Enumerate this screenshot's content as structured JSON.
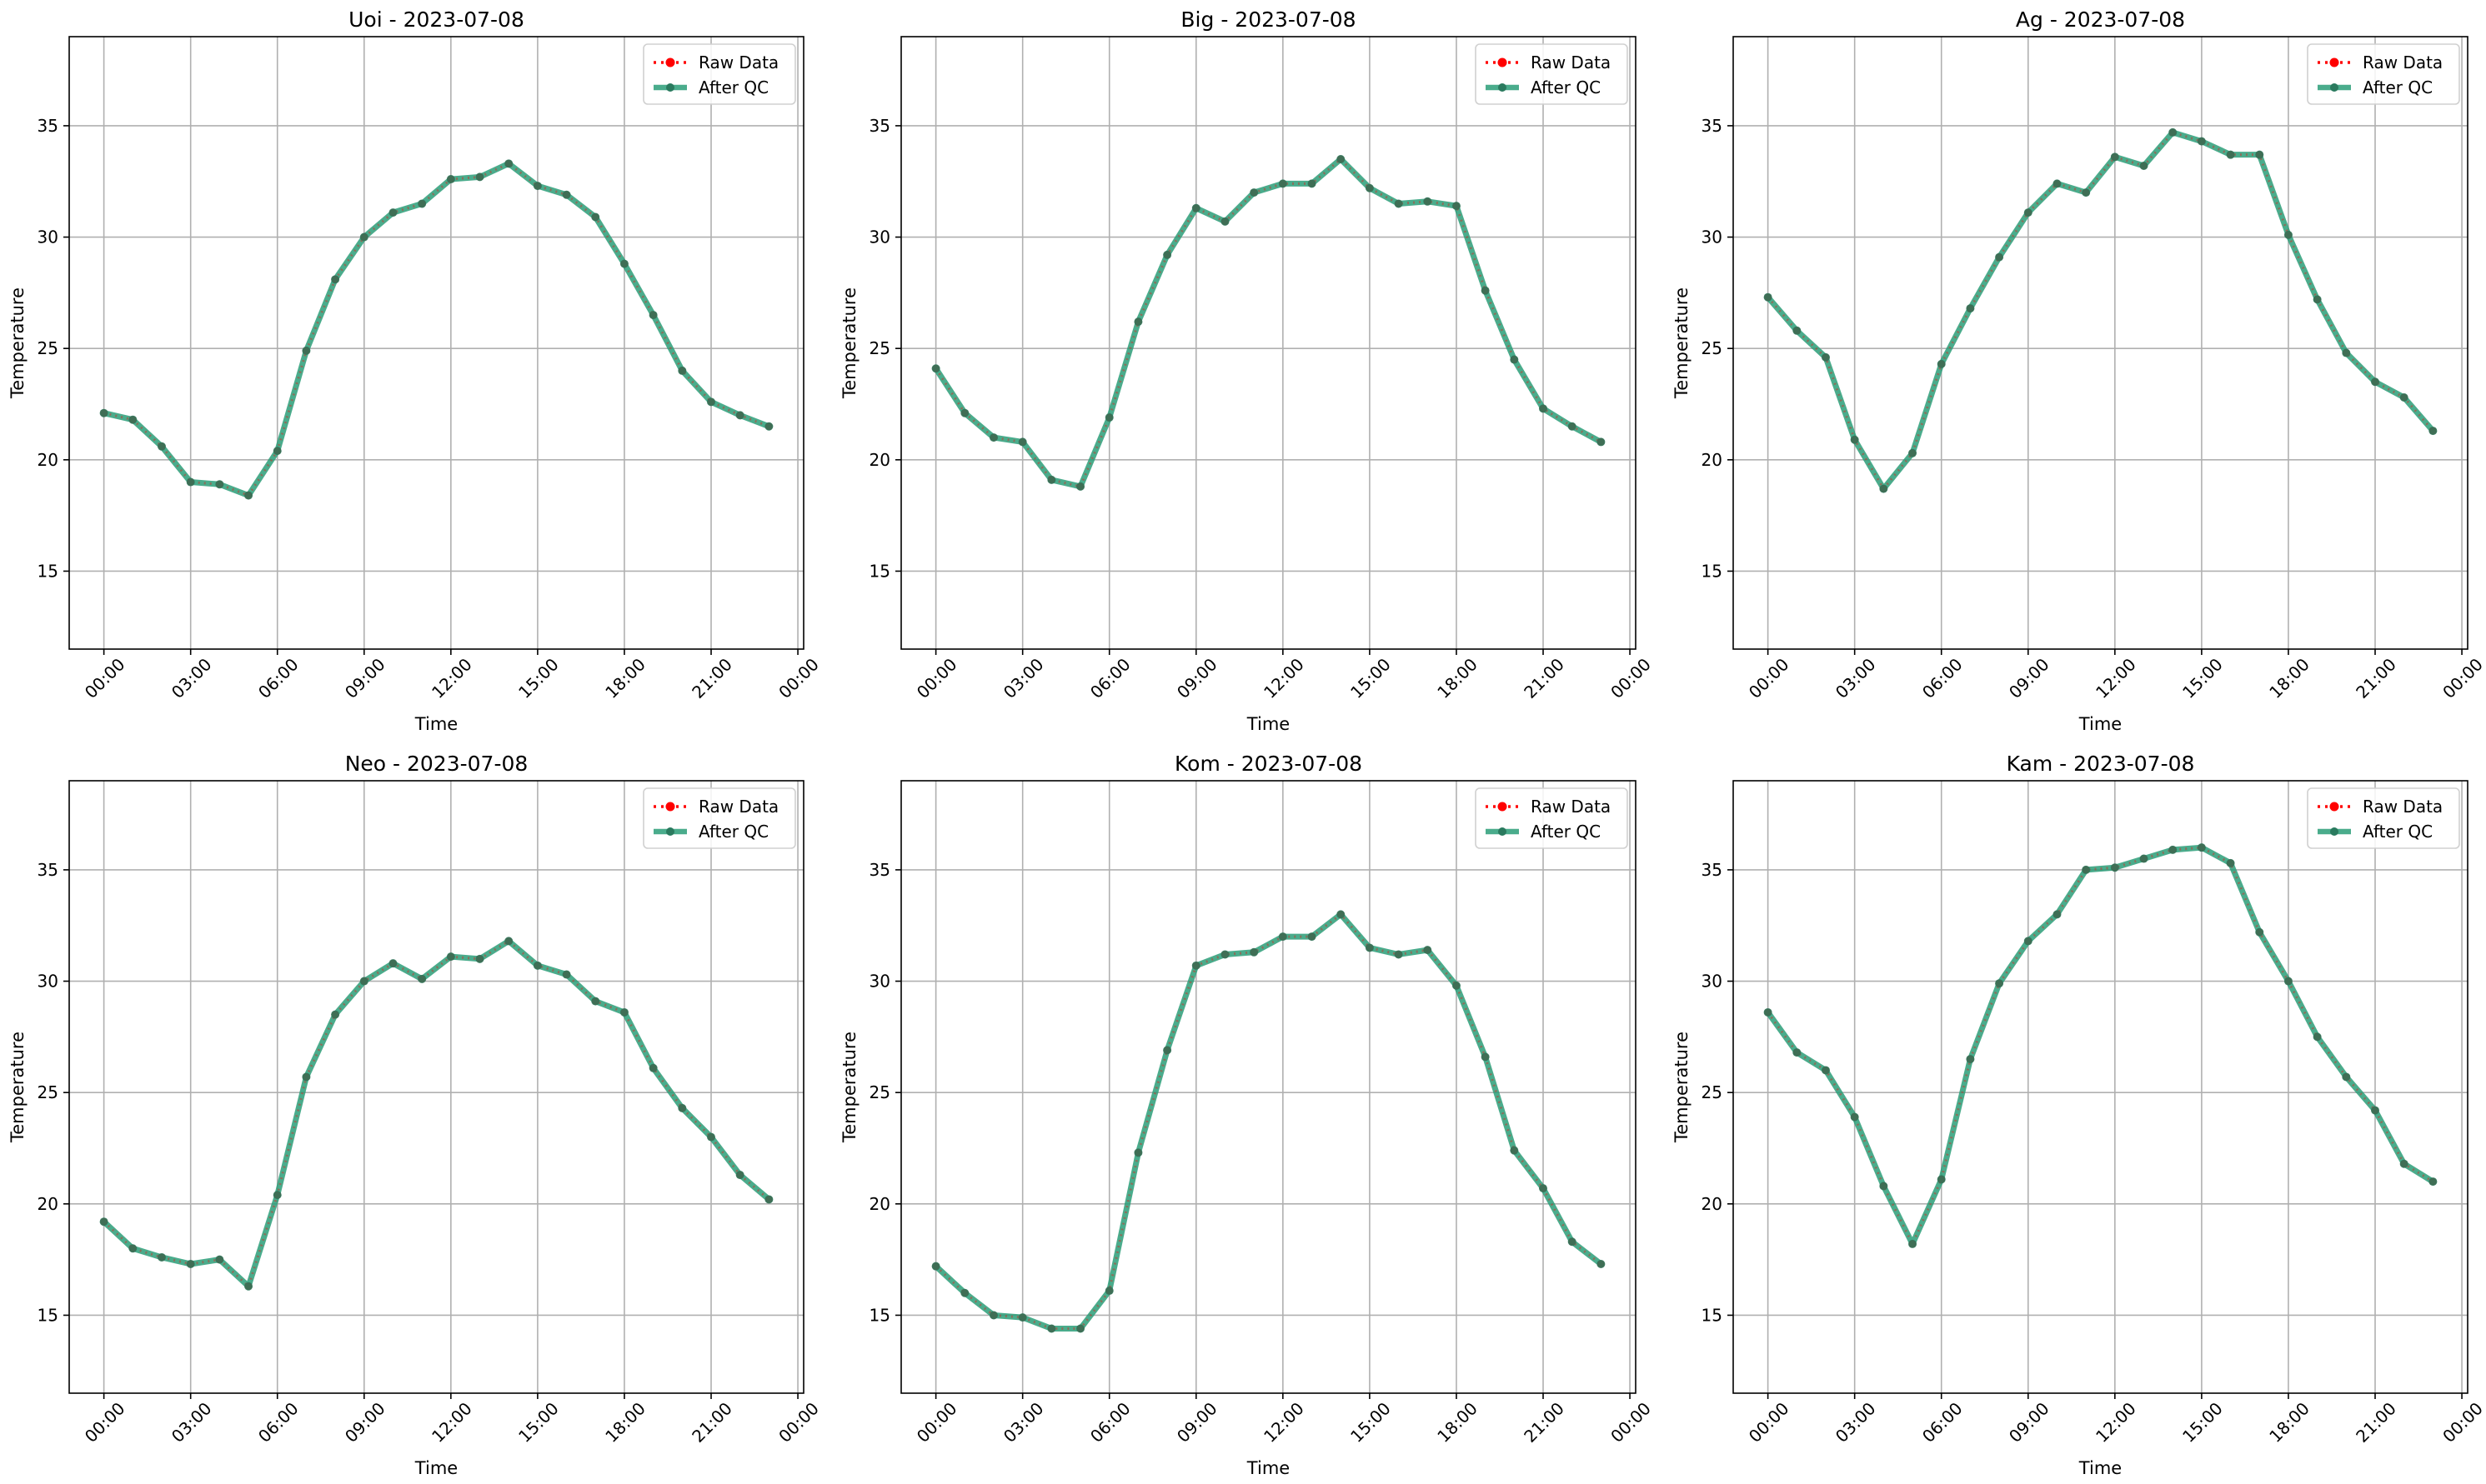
{
  "chart_data": [
    {
      "type": "line",
      "title": "Uoi - 2023-07-08",
      "xlabel": "Time",
      "ylabel": "Temperature",
      "x": [
        "00:00",
        "01:00",
        "02:00",
        "03:00",
        "04:00",
        "05:00",
        "06:00",
        "07:00",
        "08:00",
        "09:00",
        "10:00",
        "11:00",
        "12:00",
        "13:00",
        "14:00",
        "15:00",
        "16:00",
        "17:00",
        "18:00",
        "19:00",
        "20:00",
        "21:00",
        "22:00",
        "23:00"
      ],
      "x_ticks": [
        "00:00",
        "03:00",
        "06:00",
        "09:00",
        "12:00",
        "15:00",
        "18:00",
        "21:00",
        "00:00"
      ],
      "y_ticks": [
        15,
        20,
        25,
        30,
        35
      ],
      "ylim": [
        11.5,
        39
      ],
      "grid": true,
      "legend": "top-right",
      "series": [
        {
          "name": "Raw Data",
          "color": "#ff0000",
          "values": [
            22.1,
            21.8,
            20.6,
            19.0,
            18.9,
            18.4,
            20.4,
            24.9,
            28.1,
            30.0,
            31.1,
            31.5,
            32.6,
            32.7,
            33.3,
            32.3,
            31.9,
            30.9,
            28.8,
            26.5,
            24.0,
            22.6,
            22.0,
            21.5
          ]
        },
        {
          "name": "After QC",
          "color": "#2a9d78",
          "values": [
            22.1,
            21.8,
            20.6,
            19.0,
            18.9,
            18.4,
            20.4,
            24.9,
            28.1,
            30.0,
            31.1,
            31.5,
            32.6,
            32.7,
            33.3,
            32.3,
            31.9,
            30.9,
            28.8,
            26.5,
            24.0,
            22.6,
            22.0,
            21.5
          ]
        }
      ]
    },
    {
      "type": "line",
      "title": "Big - 2023-07-08",
      "xlabel": "Time",
      "ylabel": "Temperature",
      "x": [
        "00:00",
        "01:00",
        "02:00",
        "03:00",
        "04:00",
        "05:00",
        "06:00",
        "07:00",
        "08:00",
        "09:00",
        "10:00",
        "11:00",
        "12:00",
        "13:00",
        "14:00",
        "15:00",
        "16:00",
        "17:00",
        "18:00",
        "19:00",
        "20:00",
        "21:00",
        "22:00",
        "23:00"
      ],
      "x_ticks": [
        "00:00",
        "03:00",
        "06:00",
        "09:00",
        "12:00",
        "15:00",
        "18:00",
        "21:00",
        "00:00"
      ],
      "y_ticks": [
        15,
        20,
        25,
        30,
        35
      ],
      "ylim": [
        11.5,
        39
      ],
      "grid": true,
      "legend": "top-right",
      "series": [
        {
          "name": "Raw Data",
          "color": "#ff0000",
          "values": [
            24.1,
            22.1,
            21.0,
            20.8,
            19.1,
            18.8,
            21.9,
            26.2,
            29.2,
            31.3,
            30.7,
            32.0,
            32.4,
            32.4,
            33.5,
            32.2,
            31.5,
            31.6,
            31.4,
            27.6,
            24.5,
            22.3,
            21.5,
            20.8
          ]
        },
        {
          "name": "After QC",
          "color": "#2a9d78",
          "values": [
            24.1,
            22.1,
            21.0,
            20.8,
            19.1,
            18.8,
            21.9,
            26.2,
            29.2,
            31.3,
            30.7,
            32.0,
            32.4,
            32.4,
            33.5,
            32.2,
            31.5,
            31.6,
            31.4,
            27.6,
            24.5,
            22.3,
            21.5,
            20.8
          ]
        }
      ]
    },
    {
      "type": "line",
      "title": "Ag - 2023-07-08",
      "xlabel": "Time",
      "ylabel": "Temperature",
      "x": [
        "00:00",
        "01:00",
        "02:00",
        "03:00",
        "04:00",
        "05:00",
        "06:00",
        "07:00",
        "08:00",
        "09:00",
        "10:00",
        "11:00",
        "12:00",
        "13:00",
        "14:00",
        "15:00",
        "16:00",
        "17:00",
        "18:00",
        "19:00",
        "20:00",
        "21:00",
        "22:00",
        "23:00"
      ],
      "x_ticks": [
        "00:00",
        "03:00",
        "06:00",
        "09:00",
        "12:00",
        "15:00",
        "18:00",
        "21:00",
        "00:00"
      ],
      "y_ticks": [
        15,
        20,
        25,
        30,
        35
      ],
      "ylim": [
        11.5,
        39
      ],
      "grid": true,
      "legend": "top-right",
      "series": [
        {
          "name": "Raw Data",
          "color": "#ff0000",
          "values": [
            27.3,
            25.8,
            24.6,
            20.9,
            18.7,
            20.3,
            24.3,
            26.8,
            29.1,
            31.1,
            32.4,
            32.0,
            33.6,
            33.2,
            34.7,
            34.3,
            33.7,
            33.7,
            30.1,
            27.2,
            24.8,
            23.5,
            22.8,
            21.3
          ]
        },
        {
          "name": "After QC",
          "color": "#2a9d78",
          "values": [
            27.3,
            25.8,
            24.6,
            20.9,
            18.7,
            20.3,
            24.3,
            26.8,
            29.1,
            31.1,
            32.4,
            32.0,
            33.6,
            33.2,
            34.7,
            34.3,
            33.7,
            33.7,
            30.1,
            27.2,
            24.8,
            23.5,
            22.8,
            21.3
          ]
        }
      ]
    },
    {
      "type": "line",
      "title": "Neo - 2023-07-08",
      "xlabel": "Time",
      "ylabel": "Temperature",
      "x": [
        "00:00",
        "01:00",
        "02:00",
        "03:00",
        "04:00",
        "05:00",
        "06:00",
        "07:00",
        "08:00",
        "09:00",
        "10:00",
        "11:00",
        "12:00",
        "13:00",
        "14:00",
        "15:00",
        "16:00",
        "17:00",
        "18:00",
        "19:00",
        "20:00",
        "21:00",
        "22:00",
        "23:00"
      ],
      "x_ticks": [
        "00:00",
        "03:00",
        "06:00",
        "09:00",
        "12:00",
        "15:00",
        "18:00",
        "21:00",
        "00:00"
      ],
      "y_ticks": [
        15,
        20,
        25,
        30,
        35
      ],
      "ylim": [
        11.5,
        39
      ],
      "grid": true,
      "legend": "top-right",
      "series": [
        {
          "name": "Raw Data",
          "color": "#ff0000",
          "values": [
            19.2,
            18.0,
            17.6,
            17.3,
            17.5,
            16.3,
            20.4,
            25.7,
            28.5,
            30.0,
            30.8,
            30.1,
            31.1,
            31.0,
            31.8,
            30.7,
            30.3,
            29.1,
            28.6,
            26.1,
            24.3,
            23.0,
            21.3,
            20.2
          ]
        },
        {
          "name": "After QC",
          "color": "#2a9d78",
          "values": [
            19.2,
            18.0,
            17.6,
            17.3,
            17.5,
            16.3,
            20.4,
            25.7,
            28.5,
            30.0,
            30.8,
            30.1,
            31.1,
            31.0,
            31.8,
            30.7,
            30.3,
            29.1,
            28.6,
            26.1,
            24.3,
            23.0,
            21.3,
            20.2
          ]
        }
      ]
    },
    {
      "type": "line",
      "title": "Kom - 2023-07-08",
      "xlabel": "Time",
      "ylabel": "Temperature",
      "x": [
        "00:00",
        "01:00",
        "02:00",
        "03:00",
        "04:00",
        "05:00",
        "06:00",
        "07:00",
        "08:00",
        "09:00",
        "10:00",
        "11:00",
        "12:00",
        "13:00",
        "14:00",
        "15:00",
        "16:00",
        "17:00",
        "18:00",
        "19:00",
        "20:00",
        "21:00",
        "22:00",
        "23:00"
      ],
      "x_ticks": [
        "00:00",
        "03:00",
        "06:00",
        "09:00",
        "12:00",
        "15:00",
        "18:00",
        "21:00",
        "00:00"
      ],
      "y_ticks": [
        15,
        20,
        25,
        30,
        35
      ],
      "ylim": [
        11.5,
        39
      ],
      "grid": true,
      "legend": "top-right",
      "series": [
        {
          "name": "Raw Data",
          "color": "#ff0000",
          "values": [
            17.2,
            16.0,
            15.0,
            14.9,
            14.4,
            14.4,
            16.1,
            22.3,
            26.9,
            30.7,
            31.2,
            31.3,
            32.0,
            32.0,
            33.0,
            31.5,
            31.2,
            31.4,
            29.8,
            26.6,
            22.4,
            20.7,
            18.3,
            17.3
          ]
        },
        {
          "name": "After QC",
          "color": "#2a9d78",
          "values": [
            17.2,
            16.0,
            15.0,
            14.9,
            14.4,
            14.4,
            16.1,
            22.3,
            26.9,
            30.7,
            31.2,
            31.3,
            32.0,
            32.0,
            33.0,
            31.5,
            31.2,
            31.4,
            29.8,
            26.6,
            22.4,
            20.7,
            18.3,
            17.3
          ]
        }
      ]
    },
    {
      "type": "line",
      "title": "Kam - 2023-07-08",
      "xlabel": "Time",
      "ylabel": "Temperature",
      "x": [
        "00:00",
        "01:00",
        "02:00",
        "03:00",
        "04:00",
        "05:00",
        "06:00",
        "07:00",
        "08:00",
        "09:00",
        "10:00",
        "11:00",
        "12:00",
        "13:00",
        "14:00",
        "15:00",
        "16:00",
        "17:00",
        "18:00",
        "19:00",
        "20:00",
        "21:00",
        "22:00",
        "23:00"
      ],
      "x_ticks": [
        "00:00",
        "03:00",
        "06:00",
        "09:00",
        "12:00",
        "15:00",
        "18:00",
        "21:00",
        "00:00"
      ],
      "y_ticks": [
        15,
        20,
        25,
        30,
        35
      ],
      "ylim": [
        11.5,
        39
      ],
      "grid": true,
      "legend": "top-right",
      "series": [
        {
          "name": "Raw Data",
          "color": "#ff0000",
          "values": [
            28.6,
            26.8,
            26.0,
            23.9,
            20.8,
            18.2,
            21.1,
            26.5,
            29.9,
            31.8,
            33.0,
            35.0,
            35.1,
            35.5,
            35.9,
            36.0,
            35.3,
            32.2,
            30.0,
            27.5,
            25.7,
            24.2,
            21.8,
            21.0
          ]
        },
        {
          "name": "After QC",
          "color": "#2a9d78",
          "values": [
            28.6,
            26.8,
            26.0,
            23.9,
            20.8,
            18.2,
            21.1,
            26.5,
            29.9,
            31.8,
            33.0,
            35.0,
            35.1,
            35.5,
            35.9,
            36.0,
            35.3,
            32.2,
            30.0,
            27.5,
            25.7,
            24.2,
            21.8,
            21.0
          ]
        }
      ]
    }
  ]
}
